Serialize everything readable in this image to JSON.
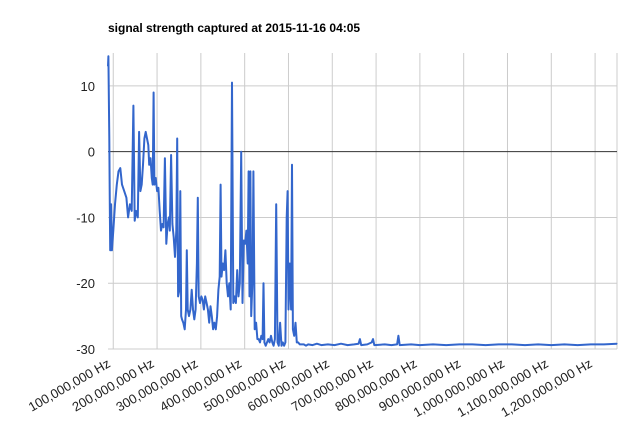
{
  "chart_data": {
    "type": "line",
    "title": "signal strength captured at 2015-11-16 04:05",
    "xlabel": "",
    "ylabel": "",
    "ylim": [
      -30,
      15
    ],
    "xlim": [
      88000000,
      1250000000
    ],
    "grid": true,
    "legend": "none",
    "yticks": [
      {
        "value": 10,
        "label": "10"
      },
      {
        "value": 0,
        "label": "0"
      },
      {
        "value": -10,
        "label": "-10"
      },
      {
        "value": -20,
        "label": "-20"
      },
      {
        "value": -30,
        "label": "-30"
      }
    ],
    "xticks": [
      {
        "value": 100000000,
        "label": "100,000,000 Hz"
      },
      {
        "value": 200000000,
        "label": "200,000,000 Hz"
      },
      {
        "value": 300000000,
        "label": "300,000,000 Hz"
      },
      {
        "value": 400000000,
        "label": "400,000,000 Hz"
      },
      {
        "value": 500000000,
        "label": "500,000,000 Hz"
      },
      {
        "value": 600000000,
        "label": "600,000,000 Hz"
      },
      {
        "value": 700000000,
        "label": "700,000,000 Hz"
      },
      {
        "value": 800000000,
        "label": "800,000,000 Hz"
      },
      {
        "value": 900000000,
        "label": "900,000,000 Hz"
      },
      {
        "value": 1000000000,
        "label": "1,000,000,000 Hz"
      },
      {
        "value": 1100000000,
        "label": "1,100,000,000 Hz"
      },
      {
        "value": 1200000000,
        "label": "1,200,000,000 Hz"
      }
    ],
    "series": [
      {
        "color": "#3366cc",
        "points": [
          [
            88000000,
            13
          ],
          [
            89000000,
            14.5
          ],
          [
            91000000,
            2
          ],
          [
            92000000,
            -8
          ],
          [
            93000000,
            -15
          ],
          [
            95000000,
            -8
          ],
          [
            97000000,
            -15
          ],
          [
            100000000,
            -12
          ],
          [
            104000000,
            -8
          ],
          [
            108000000,
            -5
          ],
          [
            112000000,
            -3
          ],
          [
            116000000,
            -2.5
          ],
          [
            120000000,
            -5
          ],
          [
            125000000,
            -6
          ],
          [
            130000000,
            -7
          ],
          [
            134000000,
            -10
          ],
          [
            138000000,
            -8
          ],
          [
            142000000,
            -9
          ],
          [
            146000000,
            7
          ],
          [
            149000000,
            -10.5
          ],
          [
            152000000,
            -9
          ],
          [
            156000000,
            -10
          ],
          [
            159000000,
            3
          ],
          [
            162000000,
            -6
          ],
          [
            165000000,
            -5
          ],
          [
            168000000,
            -2
          ],
          [
            171000000,
            2
          ],
          [
            174000000,
            3
          ],
          [
            177000000,
            2
          ],
          [
            180000000,
            1
          ],
          [
            182000000,
            -2
          ],
          [
            185000000,
            -1
          ],
          [
            188000000,
            -4
          ],
          [
            190000000,
            -5
          ],
          [
            192000000,
            9
          ],
          [
            194000000,
            -5
          ],
          [
            197000000,
            -4
          ],
          [
            200000000,
            -6
          ],
          [
            203000000,
            -5.5
          ],
          [
            206000000,
            -9
          ],
          [
            209000000,
            -12
          ],
          [
            212000000,
            -11
          ],
          [
            215000000,
            -11.5
          ],
          [
            218000000,
            -1
          ],
          [
            221000000,
            -14
          ],
          [
            224000000,
            -11
          ],
          [
            227000000,
            -10
          ],
          [
            229000000,
            -12
          ],
          [
            232000000,
            -0.5
          ],
          [
            235000000,
            -11
          ],
          [
            238000000,
            -13
          ],
          [
            241000000,
            -16
          ],
          [
            244000000,
            -12
          ],
          [
            246000000,
            2
          ],
          [
            248000000,
            -22
          ],
          [
            251000000,
            -21
          ],
          [
            253000000,
            -6
          ],
          [
            255000000,
            -25
          ],
          [
            257000000,
            -25.5
          ],
          [
            260000000,
            -26
          ],
          [
            263000000,
            -27
          ],
          [
            266000000,
            -24
          ],
          [
            268000000,
            -15
          ],
          [
            270000000,
            -24
          ],
          [
            273000000,
            -25
          ],
          [
            276000000,
            -24
          ],
          [
            279000000,
            -21
          ],
          [
            282000000,
            -24
          ],
          [
            285000000,
            -25.5
          ],
          [
            288000000,
            -24
          ],
          [
            291000000,
            -17
          ],
          [
            293000000,
            -7
          ],
          [
            295000000,
            -22
          ],
          [
            298000000,
            -23
          ],
          [
            301000000,
            -22
          ],
          [
            304000000,
            -22.5
          ],
          [
            307000000,
            -24
          ],
          [
            310000000,
            -22
          ],
          [
            313000000,
            -23
          ],
          [
            316000000,
            -24
          ],
          [
            319000000,
            -26
          ],
          [
            322000000,
            -23.5
          ],
          [
            325000000,
            -25
          ],
          [
            328000000,
            -27
          ],
          [
            331000000,
            -26
          ],
          [
            334000000,
            -27
          ],
          [
            337000000,
            -25
          ],
          [
            340000000,
            -21
          ],
          [
            343000000,
            -19
          ],
          [
            345000000,
            -5
          ],
          [
            347000000,
            -19
          ],
          [
            350000000,
            -17
          ],
          [
            353000000,
            -18
          ],
          [
            356000000,
            -15
          ],
          [
            359000000,
            -20
          ],
          [
            362000000,
            -22
          ],
          [
            365000000,
            -20
          ],
          [
            368000000,
            -24
          ],
          [
            371000000,
            10.5
          ],
          [
            374000000,
            -23
          ],
          [
            377000000,
            -22
          ],
          [
            380000000,
            -23
          ],
          [
            383000000,
            -18
          ],
          [
            386000000,
            -22
          ],
          [
            389000000,
            -20
          ],
          [
            392000000,
            0
          ],
          [
            395000000,
            -23
          ],
          [
            398000000,
            -13.5
          ],
          [
            401000000,
            -14
          ],
          [
            404000000,
            -12
          ],
          [
            407000000,
            -17
          ],
          [
            409000000,
            -3
          ],
          [
            411000000,
            -22
          ],
          [
            413000000,
            -3
          ],
          [
            415000000,
            -25
          ],
          [
            418000000,
            -19
          ],
          [
            420000000,
            -3
          ],
          [
            423000000,
            -27
          ],
          [
            426000000,
            -26
          ],
          [
            429000000,
            -28.5
          ],
          [
            432000000,
            -28.5
          ],
          [
            435000000,
            -29
          ],
          [
            438000000,
            -28
          ],
          [
            441000000,
            -28.5
          ],
          [
            443000000,
            -20
          ],
          [
            445000000,
            -29
          ],
          [
            448000000,
            -29.5
          ],
          [
            451000000,
            -29
          ],
          [
            454000000,
            -28.5
          ],
          [
            457000000,
            -29
          ],
          [
            460000000,
            -28
          ],
          [
            463000000,
            -29
          ],
          [
            466000000,
            -29.5
          ],
          [
            469000000,
            -28.5
          ],
          [
            472000000,
            -8
          ],
          [
            475000000,
            -29
          ],
          [
            478000000,
            -29.5
          ],
          [
            481000000,
            -26
          ],
          [
            484000000,
            -29.5
          ],
          [
            487000000,
            -29
          ],
          [
            490000000,
            -29.5
          ],
          [
            493000000,
            -29
          ],
          [
            496000000,
            -10
          ],
          [
            498000000,
            -6
          ],
          [
            500000000,
            -24
          ],
          [
            503000000,
            -17
          ],
          [
            506000000,
            -24
          ],
          [
            508000000,
            -2
          ],
          [
            510000000,
            -27
          ],
          [
            513000000,
            -28
          ],
          [
            516000000,
            -26
          ],
          [
            519000000,
            -29
          ],
          [
            522000000,
            -29
          ],
          [
            526000000,
            -29.3
          ],
          [
            535000000,
            -29.3
          ],
          [
            540000000,
            -29.5
          ],
          [
            545000000,
            -29.3
          ],
          [
            555000000,
            -29.4
          ],
          [
            565000000,
            -29.2
          ],
          [
            575000000,
            -29.4
          ],
          [
            590000000,
            -29.3
          ],
          [
            605000000,
            -29.4
          ],
          [
            620000000,
            -29.2
          ],
          [
            635000000,
            -29.4
          ],
          [
            650000000,
            -29.3
          ],
          [
            660000000,
            -29.2
          ],
          [
            663000000,
            -28.5
          ],
          [
            666000000,
            -29.4
          ],
          [
            680000000,
            -29.3
          ],
          [
            690000000,
            -29
          ],
          [
            693000000,
            -28.5
          ],
          [
            696000000,
            -29.4
          ],
          [
            720000000,
            -29.3
          ],
          [
            735000000,
            -29.4
          ],
          [
            748000000,
            -29.3
          ],
          [
            751000000,
            -28
          ],
          [
            754000000,
            -29.4
          ],
          [
            780000000,
            -29.3
          ],
          [
            800000000,
            -29.4
          ],
          [
            830000000,
            -29.3
          ],
          [
            860000000,
            -29.4
          ],
          [
            890000000,
            -29.3
          ],
          [
            920000000,
            -29.3
          ],
          [
            950000000,
            -29.4
          ],
          [
            980000000,
            -29.3
          ],
          [
            1010000000,
            -29.3
          ],
          [
            1040000000,
            -29.4
          ],
          [
            1070000000,
            -29.3
          ],
          [
            1100000000,
            -29.4
          ],
          [
            1130000000,
            -29.3
          ],
          [
            1160000000,
            -29.4
          ],
          [
            1190000000,
            -29.3
          ],
          [
            1220000000,
            -29.3
          ],
          [
            1250000000,
            -29.2
          ]
        ]
      }
    ]
  }
}
